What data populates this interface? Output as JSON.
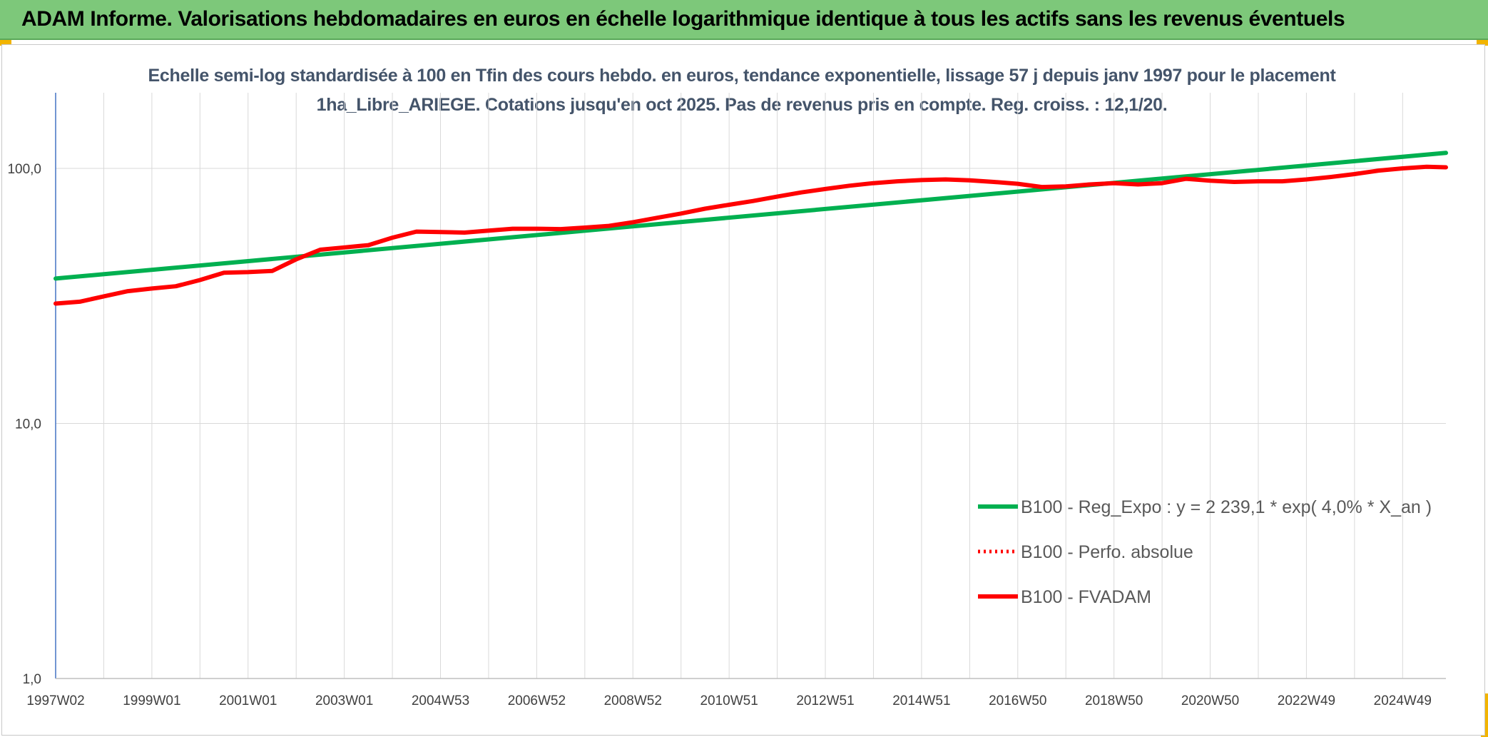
{
  "header": {
    "title": "ADAM Informe. Valorisations hebdomadaires en euros en échelle logarithmique identique à tous les actifs sans les revenus éventuels"
  },
  "chart_data": {
    "type": "line",
    "title": "Echelle semi-log standardisée à 100 en Tfin des cours hebdo. en euros, tendance exponentielle, lissage 57 j depuis janv 1997 pour le placement 1ha_Libre_ARIEGE. Cotations jusqu'en oct 2025. Pas de revenus pris en compte. Reg. croiss. : 12,1/20.",
    "y_scale": "log",
    "ylim": [
      1,
      180
    ],
    "xlim": [
      1997.0,
      2025.9
    ],
    "grid": true,
    "legend_position": "right",
    "y_ticks": [
      {
        "value": 1,
        "label": "1,0"
      },
      {
        "value": 10,
        "label": "10,0"
      },
      {
        "value": 100,
        "label": "100,0"
      }
    ],
    "x_ticks": [
      {
        "x": 1997.0,
        "label": "1997W02"
      },
      {
        "x": 1998.0,
        "label": ""
      },
      {
        "x": 1999.0,
        "label": "1999W01"
      },
      {
        "x": 2000.0,
        "label": ""
      },
      {
        "x": 2001.0,
        "label": "2001W01"
      },
      {
        "x": 2002.0,
        "label": ""
      },
      {
        "x": 2003.0,
        "label": "2003W01"
      },
      {
        "x": 2004.0,
        "label": ""
      },
      {
        "x": 2005.0,
        "label": "2004W53"
      },
      {
        "x": 2006.0,
        "label": ""
      },
      {
        "x": 2007.0,
        "label": "2006W52"
      },
      {
        "x": 2008.0,
        "label": ""
      },
      {
        "x": 2009.0,
        "label": "2008W52"
      },
      {
        "x": 2010.0,
        "label": ""
      },
      {
        "x": 2011.0,
        "label": "2010W51"
      },
      {
        "x": 2012.0,
        "label": ""
      },
      {
        "x": 2013.0,
        "label": "2012W51"
      },
      {
        "x": 2014.0,
        "label": ""
      },
      {
        "x": 2015.0,
        "label": "2014W51"
      },
      {
        "x": 2016.0,
        "label": ""
      },
      {
        "x": 2017.0,
        "label": "2016W50"
      },
      {
        "x": 2018.0,
        "label": ""
      },
      {
        "x": 2019.0,
        "label": "2018W50"
      },
      {
        "x": 2020.0,
        "label": ""
      },
      {
        "x": 2021.0,
        "label": "2020W50"
      },
      {
        "x": 2022.0,
        "label": ""
      },
      {
        "x": 2023.0,
        "label": "2022W49"
      },
      {
        "x": 2024.0,
        "label": ""
      },
      {
        "x": 2025.0,
        "label": "2024W49"
      }
    ],
    "series": [
      {
        "name": "B100 - Reg_Expo : y = 2 239,1 * exp( 4,0% *  X_an )",
        "color": "#00b050",
        "style": "solid",
        "x": [
          1997.0,
          2025.9
        ],
        "y": [
          37.0,
          115.0
        ]
      },
      {
        "name": "B100 - Perfo. absolue",
        "color": "#ff0000",
        "style": "dotted",
        "x": [],
        "y": []
      },
      {
        "name": "B100 - FVADAM",
        "color": "#ff0000",
        "style": "solid",
        "x": [
          1997.0,
          1997.5,
          1998.0,
          1998.5,
          1999.0,
          1999.5,
          2000.0,
          2000.5,
          2001.0,
          2001.5,
          2002.0,
          2002.5,
          2003.0,
          2003.5,
          2004.0,
          2004.5,
          2005.0,
          2005.5,
          2006.0,
          2006.5,
          2007.0,
          2007.5,
          2008.0,
          2008.5,
          2009.0,
          2009.5,
          2010.0,
          2010.5,
          2011.0,
          2011.5,
          2012.0,
          2012.5,
          2013.0,
          2013.5,
          2014.0,
          2014.5,
          2015.0,
          2015.5,
          2016.0,
          2016.5,
          2017.0,
          2017.5,
          2018.0,
          2018.5,
          2019.0,
          2019.5,
          2020.0,
          2020.5,
          2021.0,
          2021.5,
          2022.0,
          2022.5,
          2023.0,
          2023.5,
          2024.0,
          2024.5,
          2025.0,
          2025.5,
          2025.9
        ],
        "y": [
          29.5,
          30.0,
          31.5,
          33.0,
          33.8,
          34.5,
          36.5,
          39.0,
          39.2,
          39.6,
          44.0,
          48.0,
          49.0,
          50.0,
          53.5,
          56.5,
          56.3,
          56.0,
          57.0,
          58.0,
          58.0,
          57.8,
          58.6,
          59.5,
          61.5,
          64.0,
          66.5,
          69.5,
          72.0,
          74.5,
          77.5,
          80.5,
          83.0,
          85.5,
          87.5,
          89.0,
          90.0,
          90.5,
          89.8,
          88.5,
          87.0,
          84.5,
          85.0,
          86.5,
          87.5,
          86.5,
          87.5,
          91.0,
          89.5,
          88.5,
          89.0,
          89.0,
          90.5,
          92.5,
          95.0,
          98.0,
          100.0,
          101.5,
          101.0
        ]
      }
    ]
  }
}
